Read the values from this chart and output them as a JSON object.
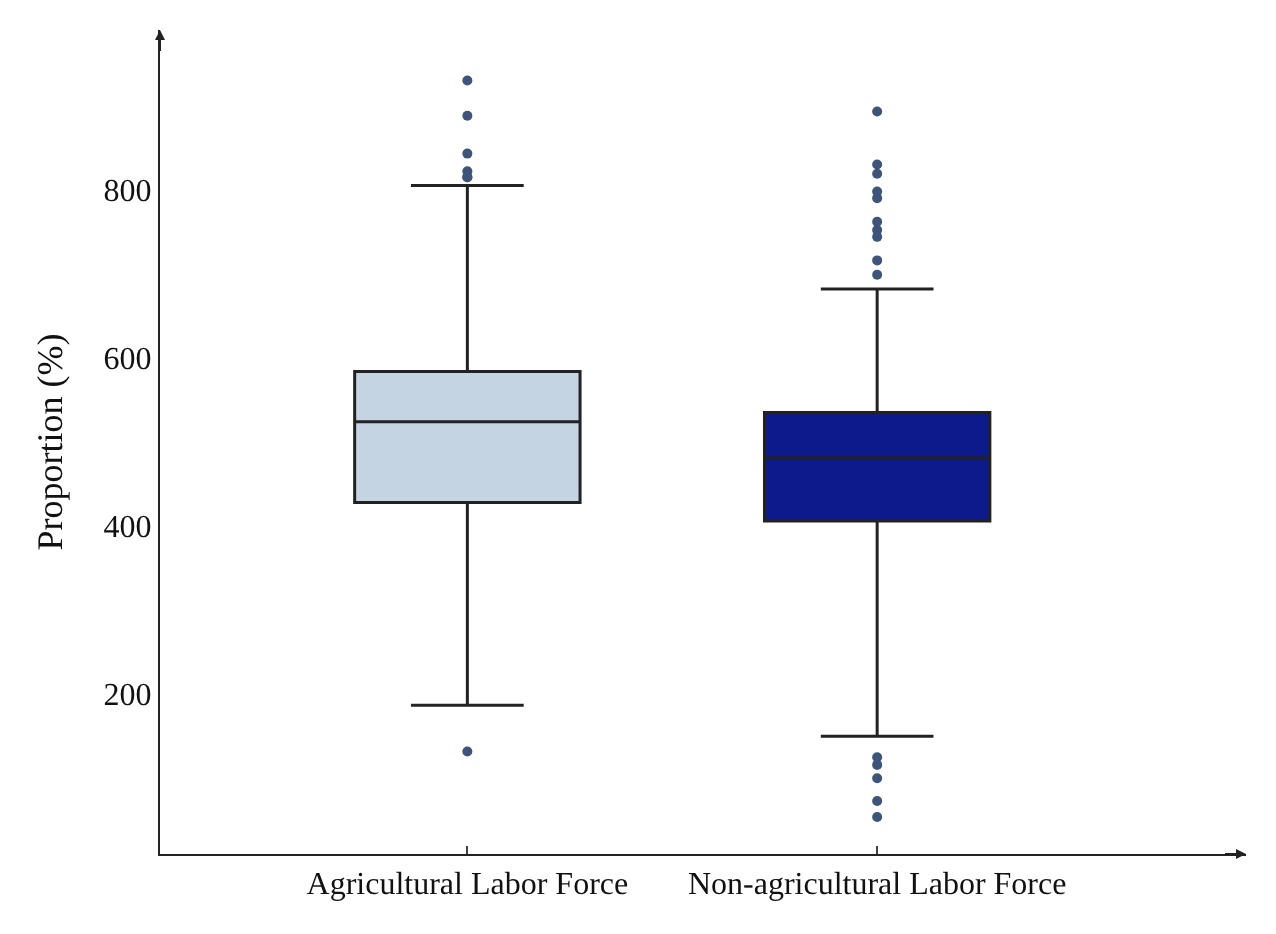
{
  "chart_data": {
    "type": "box",
    "ylabel": "Proportion (%)",
    "categories": [
      "Agricultural Labor Force",
      "Non-agricultural Labor Force"
    ],
    "colors": [
      "#c5d4e2",
      "#0c1a8c"
    ],
    "boxes": [
      {
        "low": 187,
        "q1": 428,
        "median": 524,
        "q3": 584,
        "high": 805,
        "outliers": [
          930,
          888,
          843,
          822,
          815,
          815,
          132
        ]
      },
      {
        "low": 150,
        "q1": 406,
        "median": 481,
        "q3": 535,
        "high": 682,
        "outliers": [
          893,
          830,
          819,
          798,
          790,
          762,
          752,
          744,
          716,
          699,
          125,
          116,
          100,
          73,
          54
        ]
      }
    ],
    "ylim": [
      10,
      990
    ],
    "yticks": [
      200,
      400,
      600,
      800
    ],
    "marker": "circle"
  }
}
